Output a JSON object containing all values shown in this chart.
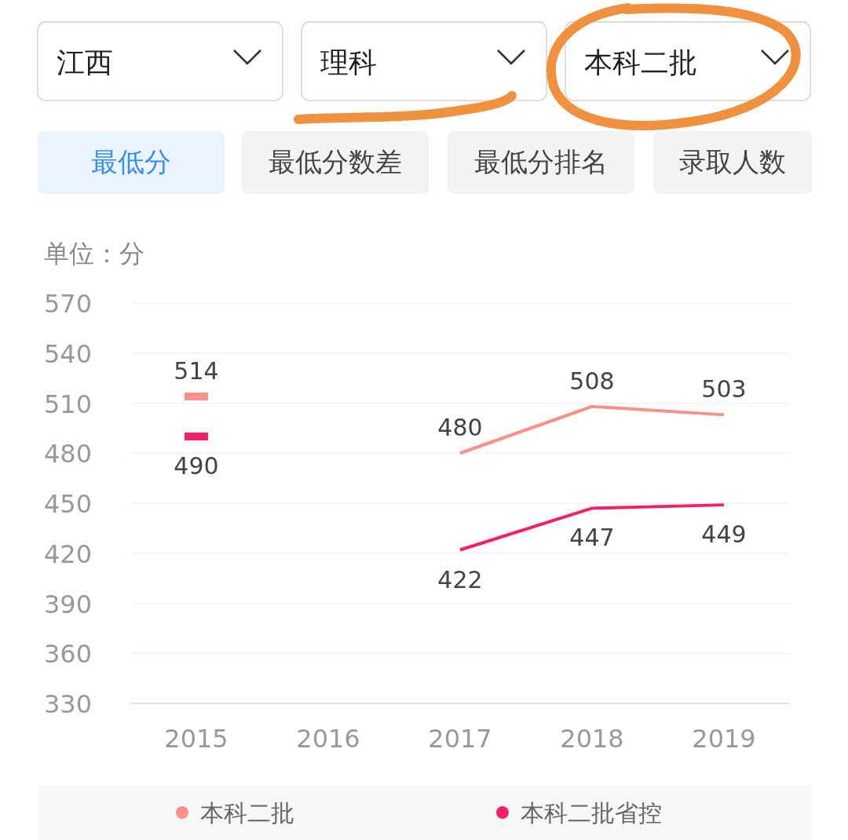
{
  "chart_data": {
    "type": "line",
    "ylabel": "单位：分",
    "categories": [
      "2015",
      "2016",
      "2017",
      "2018",
      "2019"
    ],
    "series": [
      {
        "name": "本科二批",
        "color": "#fb8f8a",
        "values": [
          514,
          null,
          480,
          508,
          503
        ]
      },
      {
        "name": "本科二批省控",
        "color": "#f31f6b",
        "values": [
          490,
          null,
          422,
          447,
          449
        ]
      }
    ],
    "ylim": [
      330,
      570
    ],
    "yticks": [
      330,
      360,
      390,
      420,
      450,
      480,
      510,
      540,
      570
    ],
    "grid": "y",
    "data_labels": true,
    "legend": "bottom",
    "marker": "none",
    "line_style": "solid",
    "annotations": [
      "江西",
      "理科",
      "本科二批",
      "最低分",
      "最低分数差",
      "最低分排名",
      "录取人数"
    ]
  }
}
